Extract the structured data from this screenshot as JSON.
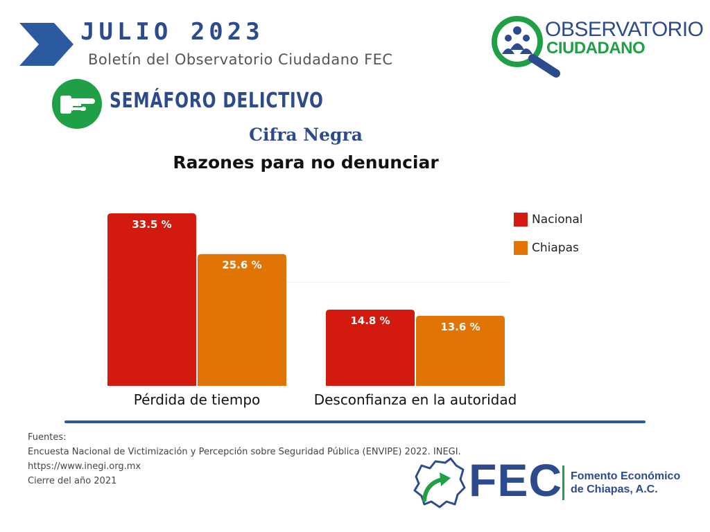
{
  "header": {
    "title": "JULIO  2023",
    "subtitle": "Boletín del Observatorio Ciudadano FEC"
  },
  "logo": {
    "line1": "OBSERVATORIO",
    "line2": "CIUDADANO"
  },
  "section": {
    "title": "SEMÁFORO DELICTIVO",
    "icon": "pointing-hand-icon"
  },
  "chart_data": {
    "type": "bar",
    "title": "Cifra Negra",
    "subtitle": "Razones para no denunciar",
    "categories": [
      "Pérdida de tiempo",
      "Desconfianza en la autoridad"
    ],
    "series": [
      {
        "name": "Nacional",
        "values": [
          33.5,
          14.8
        ],
        "labels": [
          "33.5 %",
          "14.8 %"
        ],
        "color": "#d31a0e"
      },
      {
        "name": "Chiapas",
        "values": [
          25.6,
          13.6
        ],
        "labels": [
          "25.6 %",
          "13.6 %"
        ],
        "color": "#e07506"
      }
    ],
    "ylim": [
      0,
      35
    ],
    "legend_position": "right",
    "grid": true
  },
  "sources": {
    "heading": "Fuentes:",
    "line1": "Encuesta Nacional de Victimización y Percepción sobre Seguridad Pública (ENVIPE) 2022. INEGI.",
    "line2": "https://www.inegi.org.mx",
    "line3": "Cierre del año 2021"
  },
  "footer_logo": {
    "acronym": "FEC",
    "name_line1": "Fomento Económico",
    "name_line2": "de Chiapas, A.C."
  },
  "colors": {
    "brand_blue": "#2c4a8e",
    "brand_green": "#1fa046",
    "nacional": "#d31a0e",
    "chiapas": "#e07506"
  }
}
